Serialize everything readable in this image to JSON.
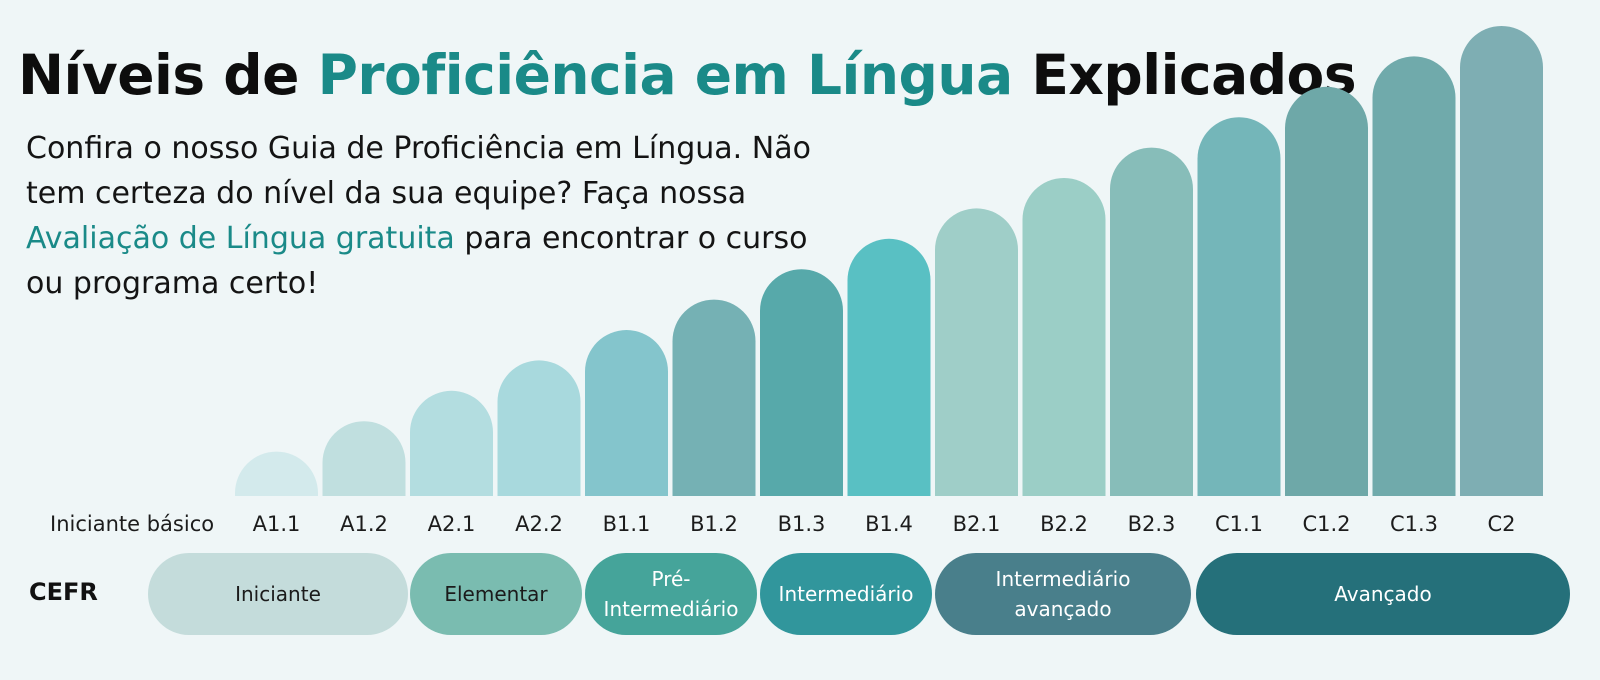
{
  "header": {
    "title_before": "Níveis de ",
    "title_accent": "Proficiência em Língua",
    "title_after": " Explicados"
  },
  "intro": {
    "text_before": "Confira o nosso Guia de Proficiência em Língua. Não tem certeza do nível da sua equipe? Faça nossa ",
    "link_text": "Avaliação de Língua gratuita",
    "text_after": " para encontrar o curso ou programa certo!"
  },
  "colors": {
    "background": "#eff6f7",
    "accent": "#1a8a88"
  },
  "chart_data": {
    "type": "bar",
    "title": "",
    "xlabel": "",
    "ylabel": "",
    "ylim": [
      0,
      15
    ],
    "axis_start_label": "Iniciante básico",
    "categories": [
      "A1.1",
      "A1.2",
      "A2.1",
      "A2.2",
      "B1.1",
      "B1.2",
      "B1.3",
      "B1.4",
      "B2.1",
      "B2.2",
      "B2.3",
      "C1.1",
      "C1.2",
      "C1.3",
      "C2"
    ],
    "values": [
      1,
      2,
      3,
      4,
      5,
      6,
      7,
      8,
      9,
      10,
      11,
      12,
      13,
      14,
      15
    ],
    "bar_colors": [
      "#d3eaec",
      "#c0dfdf",
      "#b3dde0",
      "#a8d9dd",
      "#84c5cc",
      "#75b1b4",
      "#57a9aa",
      "#59c0c3",
      "#9fcec8",
      "#9bcec6",
      "#87bdb9",
      "#74b6b9",
      "#6ea8a8",
      "#70aaab",
      "#7eaeb3"
    ],
    "grid": false,
    "legend": "none"
  },
  "cefr": {
    "label": "CEFR",
    "bands": [
      {
        "line1": "Iniciante",
        "line2": "",
        "color": "#c4dcdb",
        "text_color": "#1b1b1b"
      },
      {
        "line1": "Elementar",
        "line2": "",
        "color": "#7abcb0",
        "text_color": "#1b1b1b"
      },
      {
        "line1": "Pré-",
        "line2": "Intermediário",
        "color": "#45a49a",
        "text_color": "#ffffff"
      },
      {
        "line1": "Intermediário",
        "line2": "",
        "color": "#31969c",
        "text_color": "#ffffff"
      },
      {
        "line1": "Intermediário",
        "line2": "avançado",
        "color": "#497f8b",
        "text_color": "#ffffff"
      },
      {
        "line1": "Avançado",
        "line2": "",
        "color": "#25707a",
        "text_color": "#ffffff"
      }
    ]
  }
}
